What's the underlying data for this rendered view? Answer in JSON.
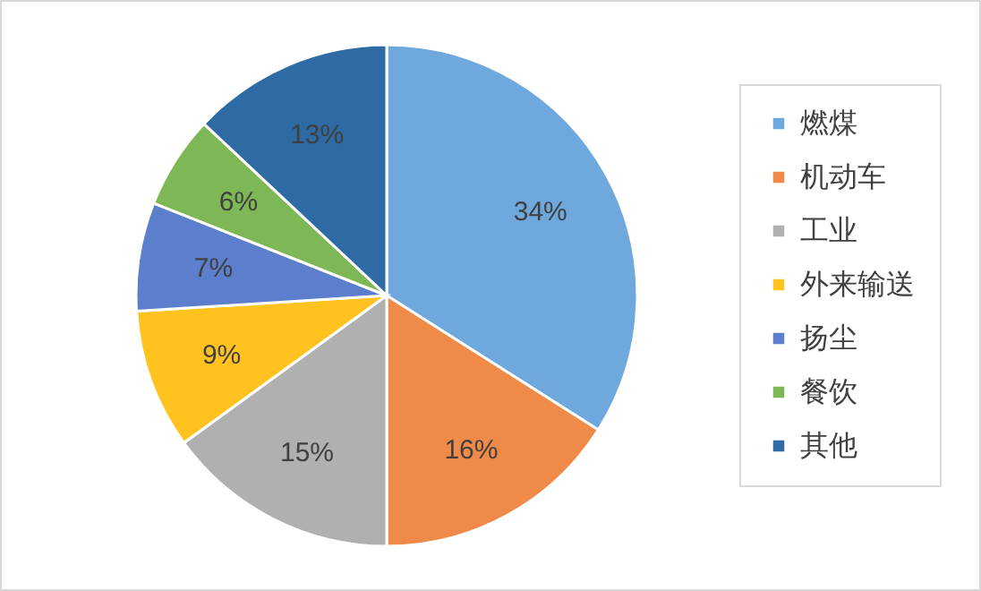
{
  "chart_data": {
    "type": "pie",
    "categories": [
      "燃煤",
      "机动车",
      "工业",
      "外来输送",
      "扬尘",
      "餐饮",
      "其他"
    ],
    "values": [
      34,
      16,
      15,
      9,
      7,
      6,
      13
    ],
    "value_labels": [
      "34%",
      "16%",
      "15%",
      "9%",
      "7%",
      "6%",
      "13%"
    ],
    "colors": [
      "#6fa8dc",
      "#f08a48",
      "#b0b0b0",
      "#ffc21f",
      "#5b7fcc",
      "#7db756",
      "#2e6aa3"
    ],
    "legend": "right"
  }
}
